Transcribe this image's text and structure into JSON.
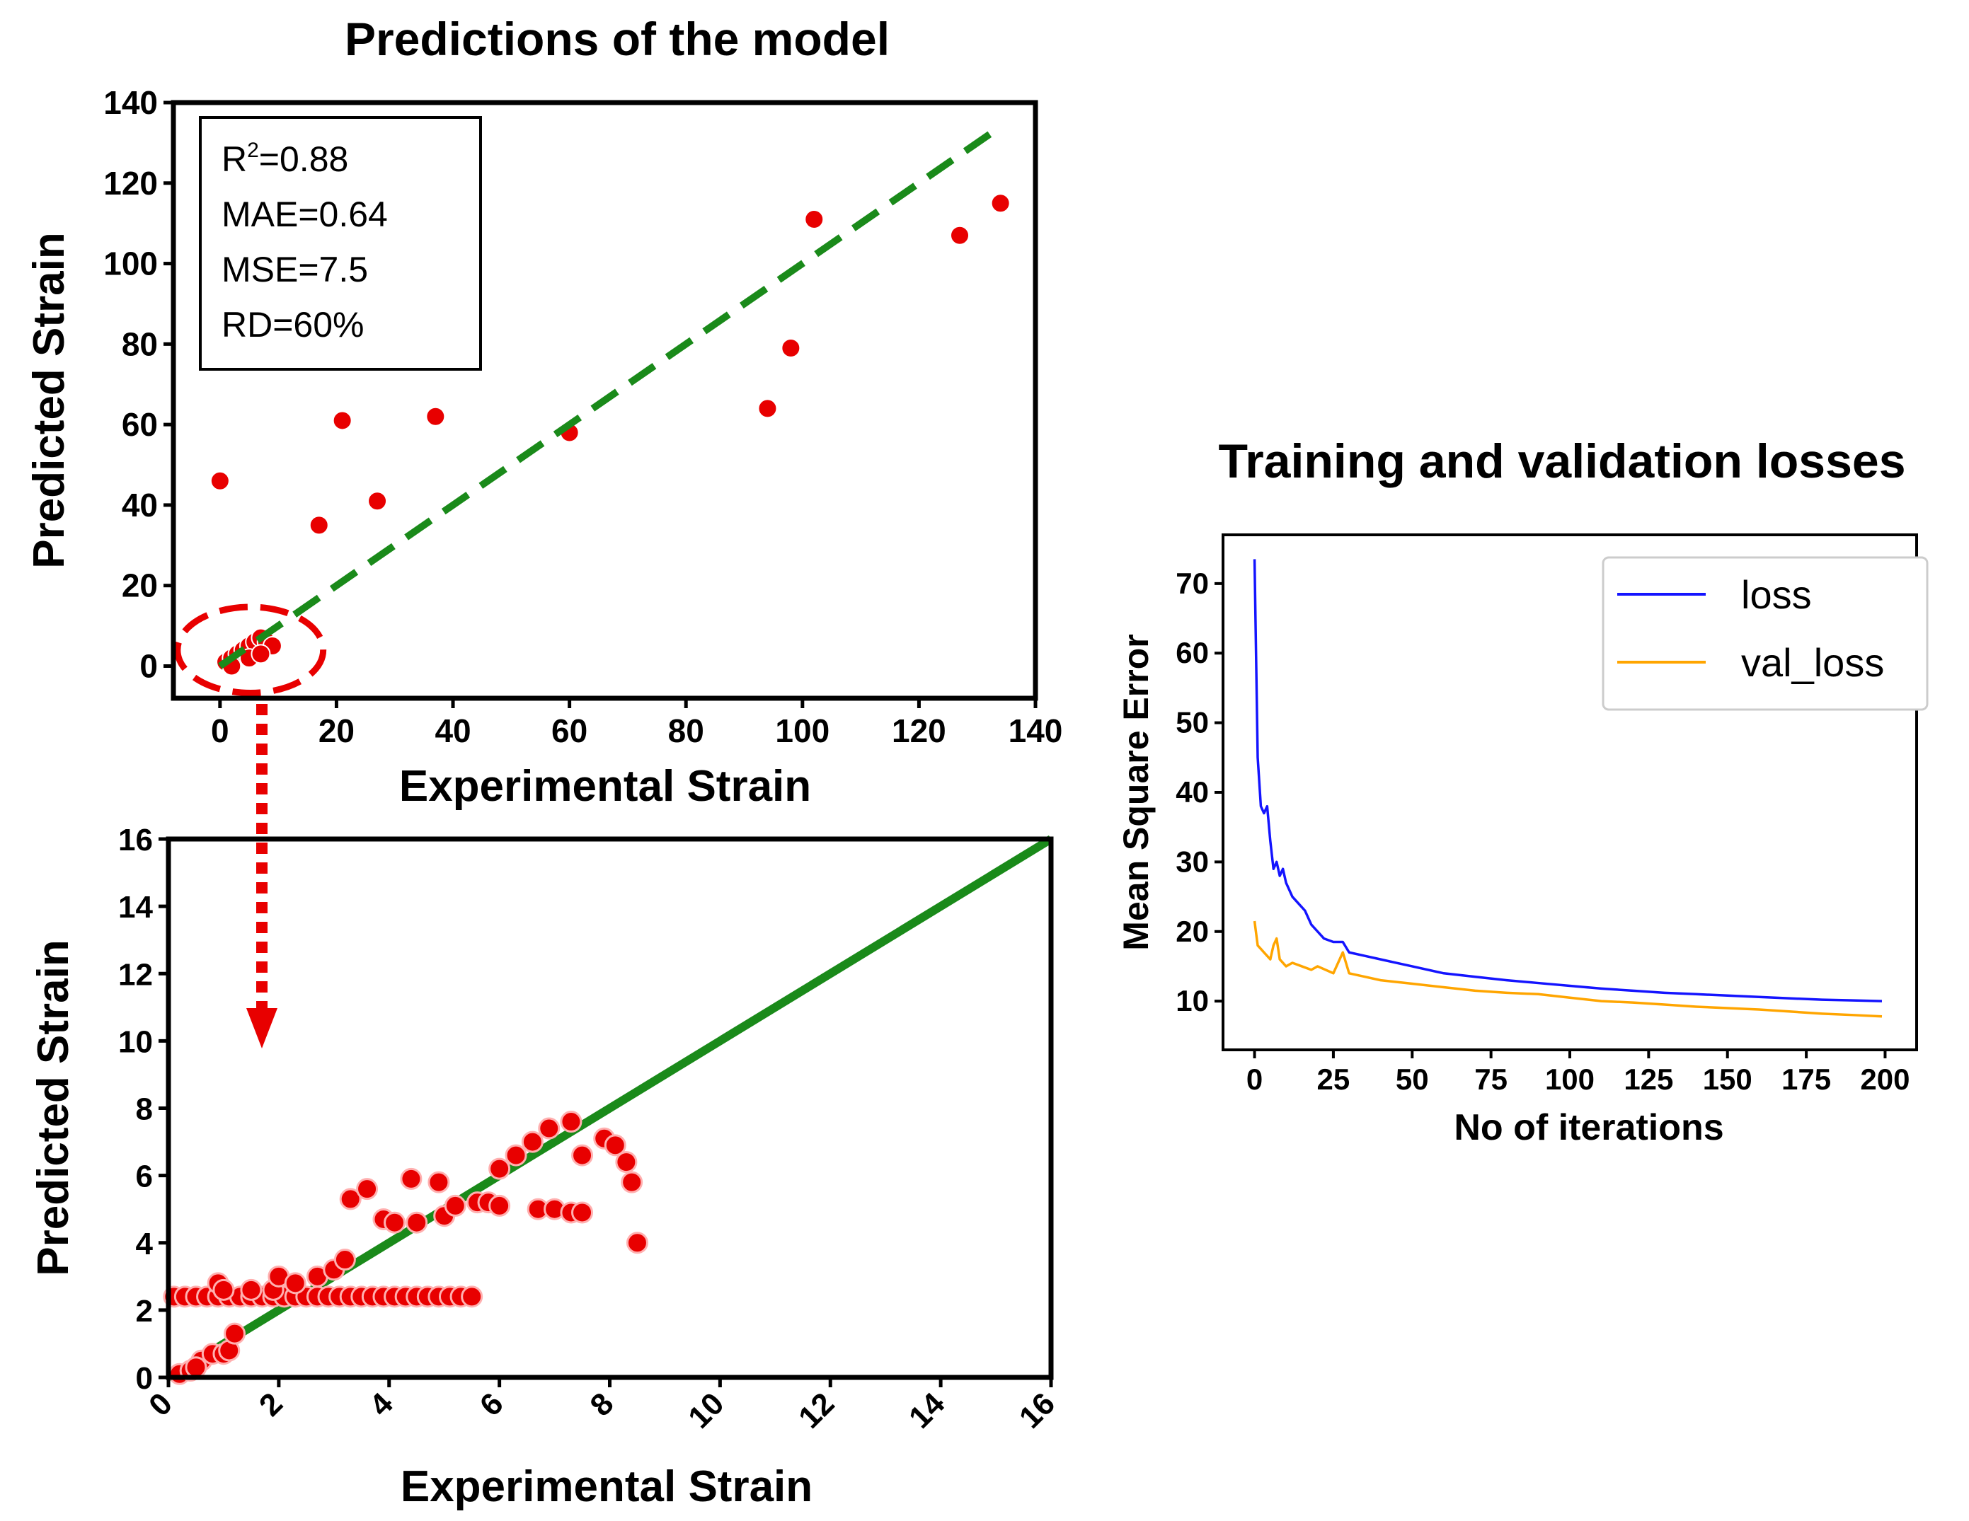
{
  "chart_data": [
    {
      "type": "scatter",
      "title": "Predictions of the model",
      "xlabel": "Experimental Strain",
      "ylabel": "Predicted Strain",
      "xlim": [
        -8,
        140
      ],
      "ylim": [
        -8,
        140
      ],
      "xticks": [
        "0",
        "20",
        "40",
        "60",
        "80",
        "100",
        "120",
        "140"
      ],
      "yticks": [
        "0",
        "20",
        "40",
        "60",
        "80",
        "100",
        "120",
        "140"
      ],
      "metrics": {
        "r2_label": "R",
        "r2_sup": "2",
        "r2_value": "=0.88",
        "mae": "MAE=0.64",
        "mse": "MSE=7.5",
        "rd": "RD=60%"
      },
      "fit_line": {
        "x": [
          0,
          133
        ],
        "y": [
          0,
          133
        ],
        "style": "dashed",
        "color": "#1a8a1a"
      },
      "points": {
        "x": [
          0,
          17,
          21,
          27,
          37,
          60,
          94,
          98,
          102,
          127,
          134,
          1,
          2,
          3,
          4,
          5,
          6,
          7,
          8,
          9,
          2,
          5,
          7
        ],
        "y": [
          46,
          35,
          61,
          41,
          62,
          58,
          64,
          79,
          111,
          107,
          115,
          1,
          2,
          3,
          4,
          5,
          6,
          7,
          6,
          5,
          0,
          2,
          3
        ],
        "color": "#e80000"
      },
      "zoom_region": {
        "x": [
          0,
          8
        ],
        "y": [
          0,
          8
        ]
      }
    },
    {
      "type": "scatter",
      "title": "",
      "xlabel": "Experimental Strain",
      "ylabel": "Predicted Strain",
      "xlim": [
        0,
        16
      ],
      "ylim": [
        0,
        16
      ],
      "xticks": [
        "0",
        "2",
        "4",
        "6",
        "8",
        "10",
        "12",
        "14",
        "16"
      ],
      "yticks": [
        "0",
        "2",
        "4",
        "6",
        "8",
        "10",
        "12",
        "14",
        "16"
      ],
      "fit_line": {
        "x": [
          0,
          16
        ],
        "y": [
          0,
          16
        ],
        "style": "solid",
        "color": "#1a8a1a"
      },
      "points": {
        "x": [
          0.1,
          0.3,
          0.5,
          0.7,
          0.9,
          1.1,
          1.3,
          1.5,
          1.7,
          1.9,
          2.1,
          2.3,
          2.5,
          2.7,
          2.9,
          3.1,
          3.3,
          3.5,
          3.7,
          3.9,
          4.1,
          4.3,
          4.5,
          4.7,
          4.9,
          5.1,
          5.3,
          5.5,
          0.9,
          1.0,
          1.5,
          1.9,
          2.0,
          2.3,
          2.7,
          3.0,
          3.2,
          3.3,
          3.6,
          3.9,
          4.1,
          4.4,
          4.5,
          4.9,
          5.0,
          5.2,
          5.6,
          6.0,
          6.3,
          6.6,
          6.9,
          7.3,
          7.5,
          7.9,
          8.1,
          8.3,
          8.4,
          8.5,
          5.8,
          6.0,
          6.7,
          7.0,
          7.3,
          7.5,
          0.2,
          0.4,
          0.6,
          0.8,
          1.0,
          1.1,
          1.2,
          0.5
        ],
        "y": [
          2.4,
          2.4,
          2.4,
          2.4,
          2.4,
          2.4,
          2.4,
          2.4,
          2.4,
          2.4,
          2.4,
          2.4,
          2.4,
          2.4,
          2.4,
          2.4,
          2.4,
          2.4,
          2.4,
          2.4,
          2.4,
          2.4,
          2.4,
          2.4,
          2.4,
          2.4,
          2.4,
          2.4,
          2.8,
          2.6,
          2.6,
          2.6,
          3.0,
          2.8,
          3.0,
          3.2,
          3.5,
          5.3,
          5.6,
          4.7,
          4.6,
          5.9,
          4.6,
          5.8,
          4.8,
          5.1,
          5.2,
          6.2,
          6.6,
          7.0,
          7.4,
          7.6,
          6.6,
          7.1,
          6.9,
          6.4,
          5.8,
          4.0,
          5.2,
          5.1,
          5.0,
          5.0,
          4.9,
          4.9,
          0.1,
          0.2,
          0.5,
          0.7,
          0.7,
          0.8,
          1.3,
          0.3
        ],
        "color": "#e80000"
      }
    },
    {
      "type": "line",
      "title": "Training and validation losses",
      "xlabel": "No of iterations",
      "ylabel": "Mean Square Error",
      "xlim": [
        -10,
        210
      ],
      "ylim": [
        3,
        77
      ],
      "xticks": [
        "0",
        "25",
        "50",
        "75",
        "100",
        "125",
        "150",
        "175",
        "200"
      ],
      "yticks": [
        "10",
        "20",
        "30",
        "40",
        "50",
        "60",
        "70"
      ],
      "legend_position": "top-right",
      "series": [
        {
          "name": "loss",
          "color": "#1414ff",
          "x": [
            0,
            1,
            2,
            3,
            4,
            5,
            6,
            7,
            8,
            9,
            10,
            12,
            14,
            16,
            18,
            20,
            22,
            25,
            28,
            30,
            35,
            40,
            45,
            50,
            60,
            70,
            80,
            90,
            100,
            110,
            120,
            130,
            140,
            150,
            160,
            170,
            180,
            190,
            199
          ],
          "y": [
            73.5,
            45,
            38,
            37,
            38,
            33,
            29,
            30,
            28,
            29,
            27,
            25,
            24,
            23,
            21,
            20,
            19,
            18.5,
            18.5,
            17,
            16.5,
            16,
            15.5,
            15,
            14,
            13.5,
            13,
            12.6,
            12.2,
            11.8,
            11.5,
            11.2,
            11,
            10.8,
            10.6,
            10.4,
            10.2,
            10.1,
            10
          ]
        },
        {
          "name": "val_loss",
          "color": "#ffa500",
          "x": [
            0,
            1,
            2,
            3,
            4,
            5,
            6,
            7,
            8,
            10,
            12,
            15,
            18,
            20,
            25,
            28,
            30,
            35,
            40,
            50,
            60,
            70,
            80,
            90,
            100,
            110,
            120,
            130,
            140,
            150,
            160,
            170,
            180,
            190,
            199
          ],
          "y": [
            21.5,
            18,
            17.5,
            17,
            16.5,
            16,
            18,
            19,
            16,
            15,
            15.5,
            15,
            14.5,
            15,
            14,
            17,
            14,
            13.5,
            13,
            12.5,
            12,
            11.5,
            11.2,
            11,
            10.5,
            10,
            9.8,
            9.5,
            9.2,
            9,
            8.8,
            8.5,
            8.2,
            8,
            7.8
          ]
        }
      ]
    }
  ]
}
